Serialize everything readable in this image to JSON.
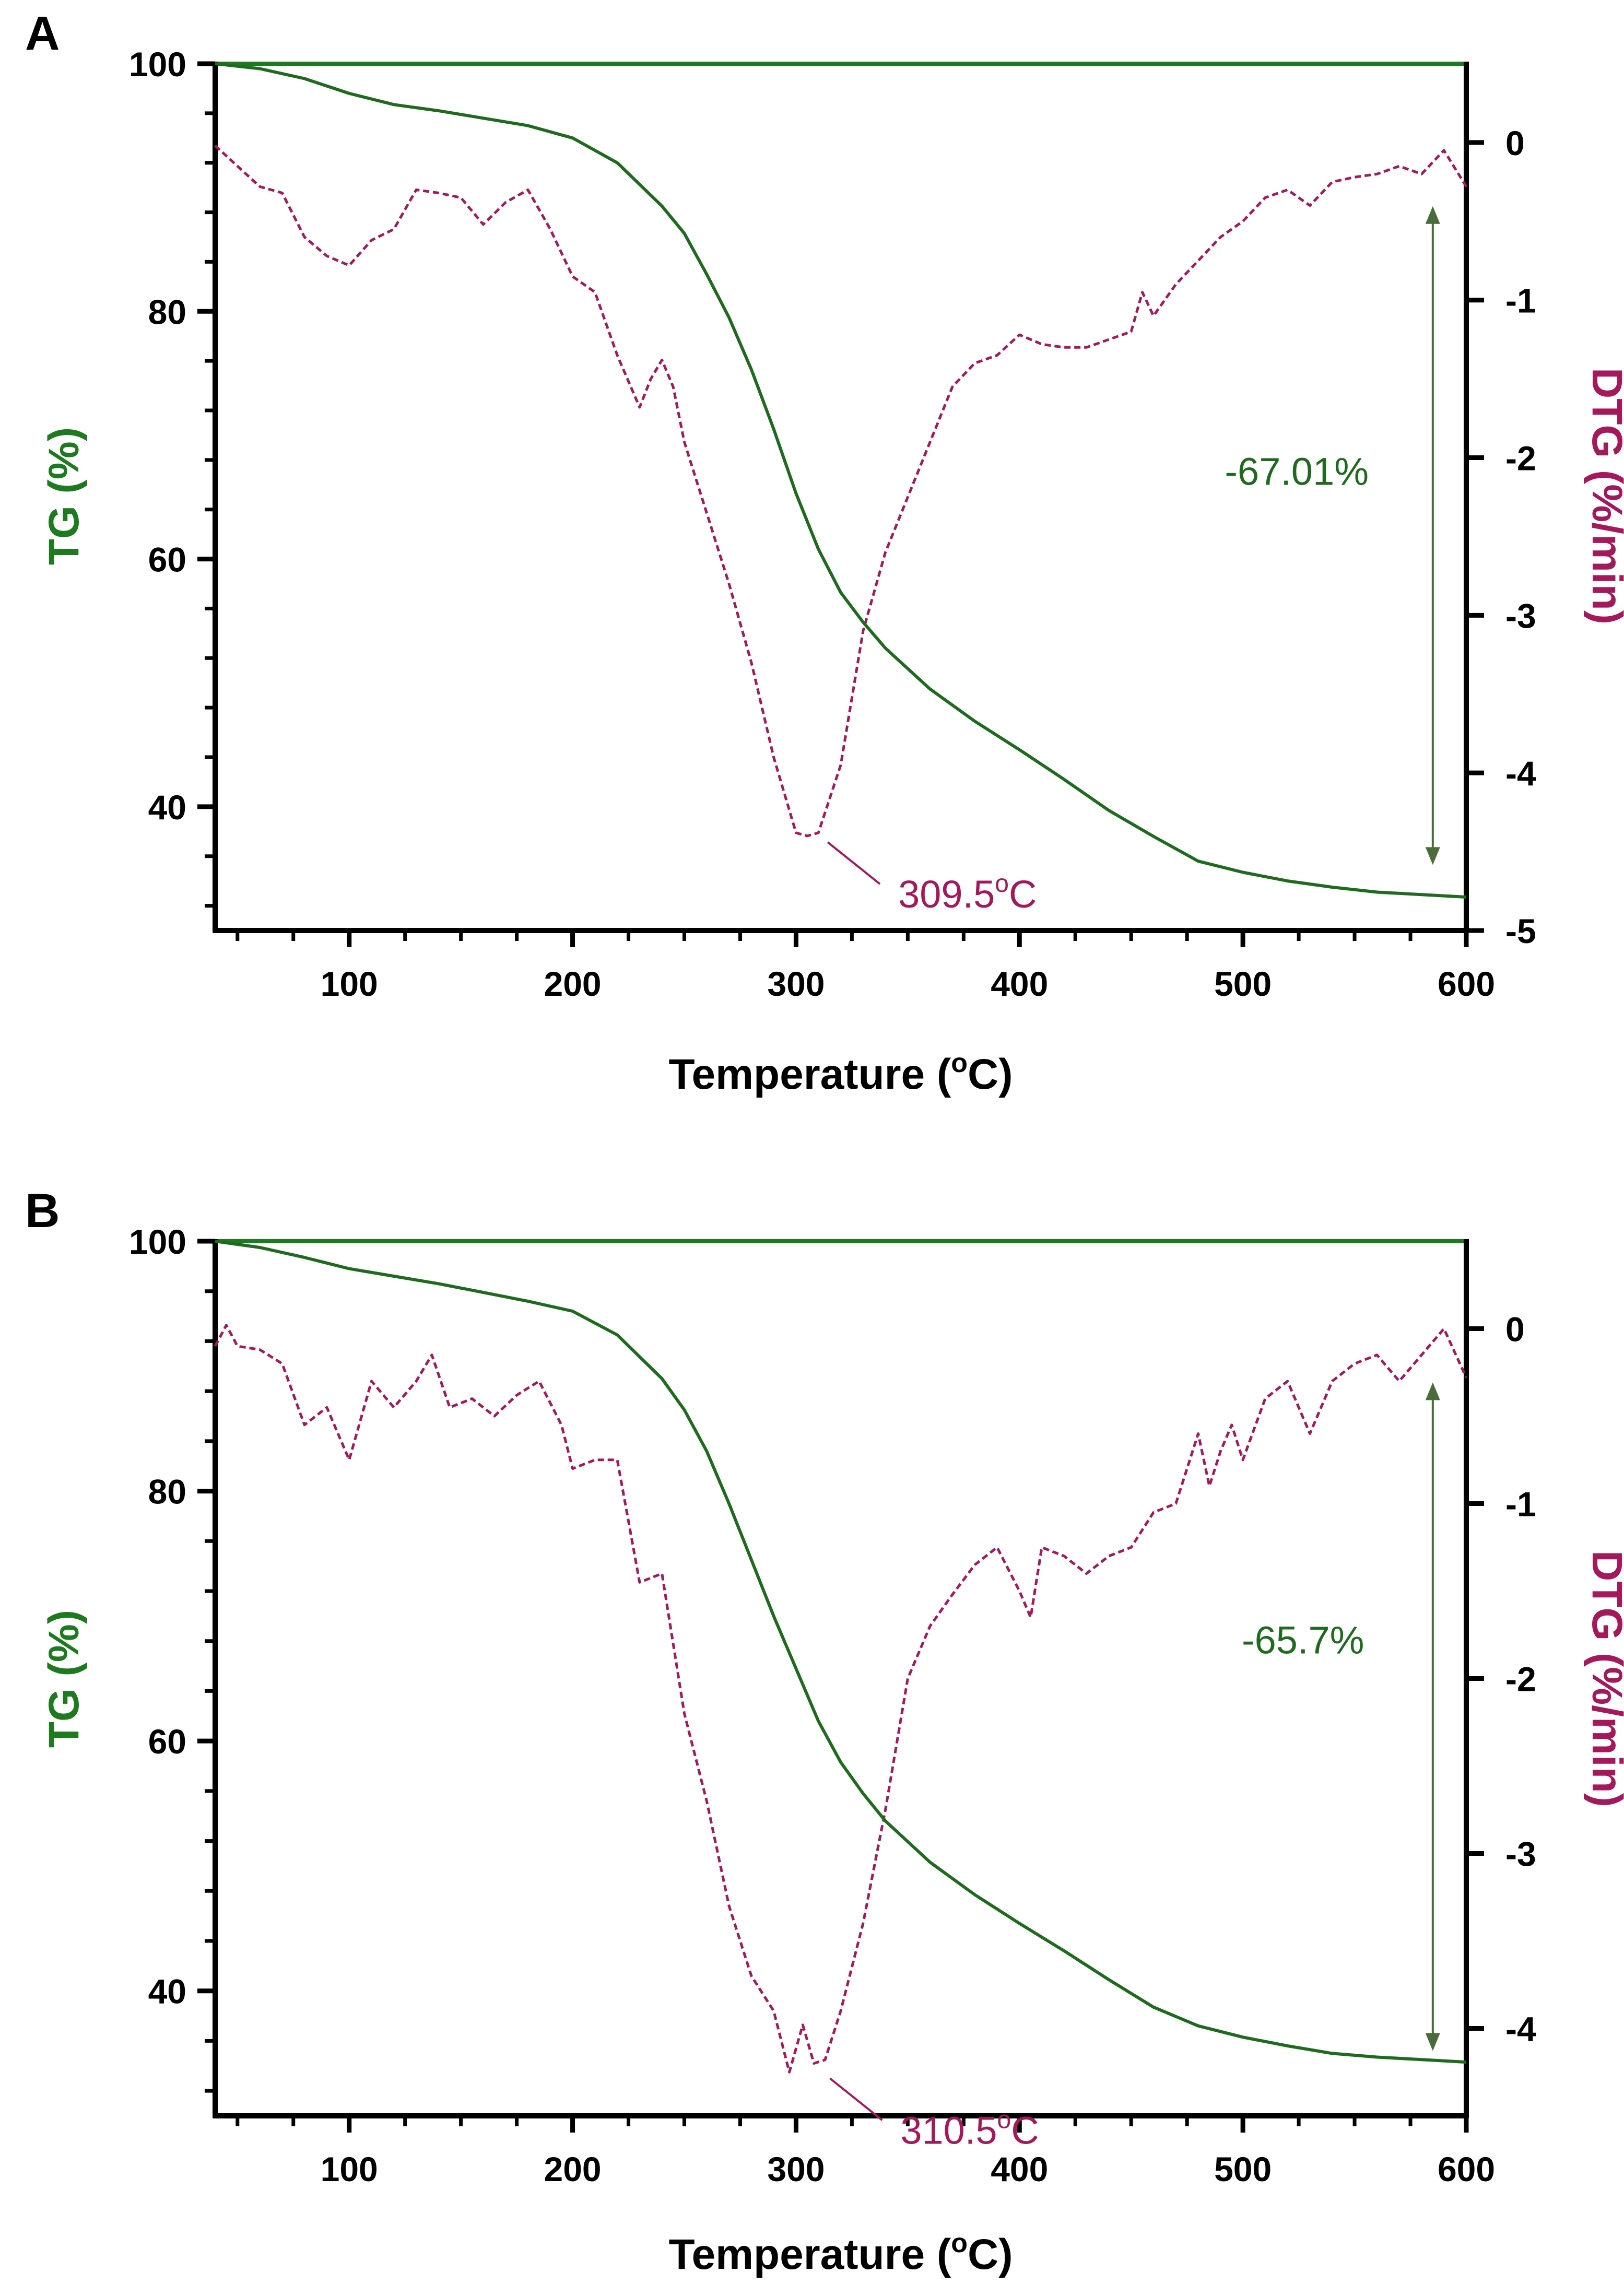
{
  "colors": {
    "tg": "#1e6b1e",
    "tg_axis": "#1e7a1e",
    "dtg": "#a3195b",
    "axis": "#000000",
    "arrow": "#4a6b3a"
  },
  "chart_data": [
    {
      "type": "line",
      "panel_label": "A",
      "xlabel": "Temperature (",
      "xlabel_sup": "o",
      "xlabel_end": "C)",
      "ylabel_left": "TG (%)",
      "ylabel_right": "DTG (%/min)",
      "xlim": [
        40,
        600
      ],
      "ylim_left": [
        30,
        100
      ],
      "ylim_right": [
        -5,
        0.5
      ],
      "x_ticks": [
        100,
        200,
        300,
        400,
        500,
        600
      ],
      "x_tick_labels": [
        "100",
        "200",
        "300",
        "400",
        "500",
        "600"
      ],
      "y_left_ticks": [
        40,
        60,
        80,
        100
      ],
      "y_left_tick_labels": [
        "40",
        "60",
        "80",
        "100"
      ],
      "y_right_ticks": [
        0,
        -1,
        -2,
        -3,
        -4,
        -5
      ],
      "y_right_tick_labels": [
        "0",
        "-1",
        "-2",
        "-3",
        "-4",
        "-5"
      ],
      "tg_series": {
        "name": "TG",
        "x": [
          40,
          60,
          80,
          100,
          120,
          140,
          160,
          180,
          200,
          220,
          240,
          250,
          260,
          270,
          280,
          290,
          300,
          310,
          320,
          330,
          340,
          360,
          380,
          400,
          420,
          440,
          460,
          480,
          500,
          520,
          540,
          560,
          580,
          600
        ],
        "y": [
          100,
          99.6,
          98.8,
          97.6,
          96.7,
          96.2,
          95.6,
          95.0,
          94.0,
          92.0,
          88.5,
          86.3,
          83.0,
          79.5,
          75.3,
          70.5,
          65.3,
          60.8,
          57.3,
          54.9,
          52.8,
          49.5,
          46.9,
          44.6,
          42.2,
          39.7,
          37.6,
          35.6,
          34.7,
          34.0,
          33.5,
          33.1,
          32.9,
          32.7
        ]
      },
      "dtg_series": {
        "name": "DTG",
        "x": [
          40,
          50,
          60,
          70,
          80,
          90,
          100,
          110,
          120,
          130,
          140,
          150,
          160,
          170,
          180,
          190,
          200,
          210,
          220,
          230,
          235,
          240,
          245,
          250,
          260,
          270,
          280,
          290,
          300,
          305,
          310,
          320,
          330,
          340,
          350,
          360,
          370,
          380,
          390,
          400,
          410,
          420,
          430,
          440,
          450,
          455,
          460,
          470,
          480,
          490,
          500,
          510,
          520,
          530,
          540,
          550,
          560,
          570,
          580,
          590,
          600
        ],
        "y": [
          -0.02,
          -0.15,
          -0.28,
          -0.32,
          -0.6,
          -0.72,
          -0.78,
          -0.62,
          -0.55,
          -0.3,
          -0.32,
          -0.35,
          -0.52,
          -0.38,
          -0.3,
          -0.55,
          -0.85,
          -0.95,
          -1.35,
          -1.68,
          -1.5,
          -1.38,
          -1.55,
          -1.9,
          -2.35,
          -2.8,
          -3.3,
          -3.9,
          -4.38,
          -4.4,
          -4.38,
          -3.95,
          -3.1,
          -2.6,
          -2.25,
          -1.9,
          -1.55,
          -1.4,
          -1.35,
          -1.22,
          -1.28,
          -1.3,
          -1.3,
          -1.25,
          -1.2,
          -0.95,
          -1.1,
          -0.9,
          -0.75,
          -0.6,
          -0.5,
          -0.35,
          -0.3,
          -0.4,
          -0.25,
          -0.22,
          -0.2,
          -0.15,
          -0.2,
          -0.05,
          -0.28
        ]
      },
      "peak_label": "309.5",
      "peak_sup": "o",
      "peak_unit": "C",
      "peak_x": 309.5,
      "mass_loss_label": "-67.01%",
      "arrow_x": 585,
      "arrow_tg_top": 88.5,
      "arrow_tg_bottom": 35.3,
      "label_x": 575,
      "label_tg": 66
    },
    {
      "type": "line",
      "panel_label": "B",
      "xlabel": "Temperature (",
      "xlabel_sup": "o",
      "xlabel_end": "C)",
      "ylabel_left": "TG (%)",
      "ylabel_right": "DTG (%/min)",
      "xlim": [
        40,
        600
      ],
      "ylim_left": [
        30,
        100
      ],
      "ylim_right": [
        -4.5,
        0.5
      ],
      "x_ticks": [
        100,
        200,
        300,
        400,
        500,
        600
      ],
      "x_tick_labels": [
        "100",
        "200",
        "300",
        "400",
        "500",
        "600"
      ],
      "y_left_ticks": [
        40,
        60,
        80,
        100
      ],
      "y_left_tick_labels": [
        "40",
        "60",
        "80",
        "100"
      ],
      "y_right_ticks": [
        0,
        -1,
        -2,
        -3,
        -4
      ],
      "y_right_tick_labels": [
        "0",
        "-1",
        "-2",
        "-3",
        "-4"
      ],
      "tg_series": {
        "name": "TG",
        "x": [
          40,
          60,
          80,
          100,
          120,
          140,
          160,
          180,
          200,
          220,
          240,
          250,
          260,
          270,
          280,
          290,
          300,
          310,
          320,
          330,
          340,
          360,
          380,
          400,
          420,
          440,
          460,
          480,
          500,
          520,
          540,
          560,
          580,
          600
        ],
        "y": [
          100,
          99.5,
          98.7,
          97.8,
          97.2,
          96.6,
          95.9,
          95.2,
          94.4,
          92.5,
          89.0,
          86.5,
          83.2,
          79.0,
          74.5,
          70.0,
          65.8,
          61.6,
          58.3,
          55.8,
          53.6,
          50.3,
          47.7,
          45.4,
          43.2,
          40.9,
          38.7,
          37.2,
          36.3,
          35.6,
          35.0,
          34.7,
          34.5,
          34.3
        ]
      },
      "dtg_series": {
        "name": "DTG",
        "x": [
          40,
          45,
          50,
          60,
          70,
          80,
          90,
          100,
          110,
          120,
          130,
          137,
          145,
          155,
          165,
          175,
          185,
          195,
          200,
          210,
          220,
          230,
          240,
          250,
          260,
          270,
          280,
          290,
          297,
          303,
          308,
          313,
          320,
          330,
          340,
          350,
          360,
          370,
          380,
          390,
          400,
          405,
          410,
          420,
          430,
          440,
          450,
          460,
          470,
          480,
          485,
          490,
          495,
          500,
          510,
          520,
          530,
          540,
          550,
          560,
          570,
          580,
          590,
          600
        ],
        "y": [
          -0.1,
          0.02,
          -0.1,
          -0.12,
          -0.2,
          -0.55,
          -0.45,
          -0.75,
          -0.3,
          -0.45,
          -0.3,
          -0.15,
          -0.45,
          -0.4,
          -0.5,
          -0.38,
          -0.3,
          -0.55,
          -0.8,
          -0.75,
          -0.75,
          -1.45,
          -1.4,
          -2.2,
          -2.7,
          -3.3,
          -3.7,
          -3.9,
          -4.25,
          -3.98,
          -4.2,
          -4.18,
          -3.9,
          -3.4,
          -2.75,
          -2.0,
          -1.7,
          -1.52,
          -1.35,
          -1.25,
          -1.5,
          -1.65,
          -1.25,
          -1.3,
          -1.4,
          -1.3,
          -1.25,
          -1.05,
          -1.0,
          -0.6,
          -0.9,
          -0.7,
          -0.55,
          -0.75,
          -0.4,
          -0.3,
          -0.6,
          -0.3,
          -0.2,
          -0.15,
          -0.3,
          -0.15,
          0.0,
          -0.28
        ]
      },
      "peak_label": "310.5",
      "peak_sup": "o",
      "peak_unit": "C",
      "peak_x": 310.5,
      "mass_loss_label": "-65.7%",
      "arrow_x": 585,
      "arrow_tg_top": 88.7,
      "arrow_tg_bottom": 35.2,
      "label_x": 573,
      "label_tg": 67
    }
  ]
}
